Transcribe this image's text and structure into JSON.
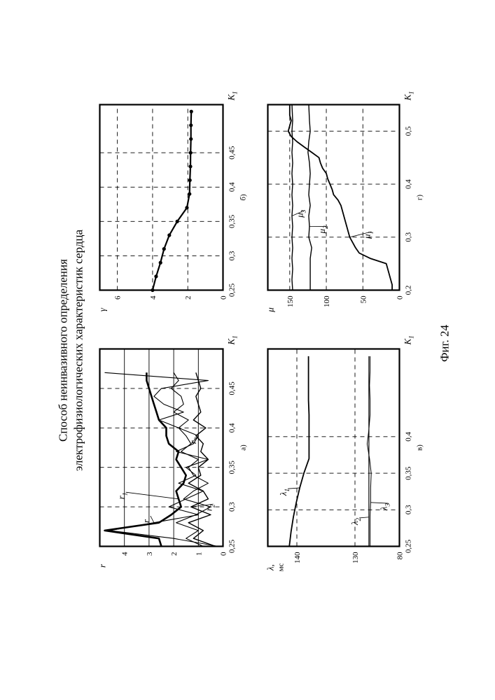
{
  "document": {
    "title_line1": "Способ неинвазивного определения",
    "title_line2": "электрофизиологических характеристик сердца",
    "figure_caption": "Фиг. 24"
  },
  "chart_data": [
    {
      "id": "a",
      "type": "line",
      "caption": "а)",
      "xlabel": "K1",
      "ylabel": "r",
      "xlim": [
        0.25,
        0.5
      ],
      "ylim": [
        0,
        5
      ],
      "xticks": [
        "0,25",
        "0,3",
        "0,35",
        "0,4",
        "0,45"
      ],
      "yticks": [
        "0",
        "1",
        "2",
        "3",
        "4"
      ],
      "grid": true,
      "series": [
        {
          "name": "r1",
          "label_text": "r",
          "label_sub": "1",
          "stroke": 2.6,
          "x": [
            0.25,
            0.26,
            0.27,
            0.28,
            0.29,
            0.3,
            0.31,
            0.32,
            0.33,
            0.34,
            0.35,
            0.36,
            0.37,
            0.38,
            0.39,
            0.4,
            0.41,
            0.42,
            0.43,
            0.44,
            0.45,
            0.46,
            0.47
          ],
          "y": [
            2.5,
            2.6,
            4.8,
            2.6,
            2.1,
            1.7,
            1.8,
            1.9,
            1.6,
            1.5,
            1.7,
            1.9,
            1.8,
            2.2,
            2.3,
            2.3,
            2.6,
            2.7,
            2.8,
            2.9,
            3.0,
            3.1,
            3.1
          ]
        },
        {
          "name": "r2",
          "label_text": "r",
          "label_sub": "2",
          "stroke": 1.4,
          "x": [
            0.25,
            0.26,
            0.27,
            0.28,
            0.29,
            0.3,
            0.31,
            0.32,
            0.33,
            0.34,
            0.35,
            0.36,
            0.37,
            0.38,
            0.39,
            0.4,
            0.41,
            0.42,
            0.43,
            0.44,
            0.45,
            0.46,
            0.47
          ],
          "y": [
            0.3,
            1.2,
            0.8,
            1.4,
            0.5,
            1.3,
            0.6,
            0.8,
            1.4,
            0.9,
            1.0,
            0.6,
            0.9,
            0.8,
            1.1,
            0.7,
            1.2,
            0.9,
            1.0,
            1.1,
            0.9,
            1.0,
            1.1
          ]
        },
        {
          "name": "r3",
          "label_text": "r",
          "label_sub": "3",
          "stroke": 1.1,
          "x": [
            0.25,
            0.26,
            0.27,
            0.28,
            0.29,
            0.3,
            0.31,
            0.32,
            0.33,
            0.34,
            0.35,
            0.36,
            0.37,
            0.38,
            0.39,
            0.4,
            0.41,
            0.42,
            0.43,
            0.44,
            0.45,
            0.46,
            0.47
          ],
          "y": [
            0.8,
            1.5,
            1.0,
            1.9,
            1.1,
            0.5,
            1.6,
            1.2,
            0.6,
            1.2,
            1.4,
            1.0,
            1.7,
            1.3,
            1.5,
            1.8,
            1.4,
            2.0,
            1.6,
            1.7,
            2.1,
            1.8,
            2.0
          ]
        },
        {
          "name": "r",
          "label_text": "r",
          "label_sub": "",
          "stroke": 1.1,
          "x": [
            0.25,
            0.26,
            0.27,
            0.28,
            0.29,
            0.3,
            0.31,
            0.32,
            0.33,
            0.34,
            0.35,
            0.36,
            0.37,
            0.38,
            0.39,
            0.4,
            0.41,
            0.42,
            0.43,
            0.44,
            0.45,
            0.46,
            0.47
          ],
          "y": [
            0.2,
            2.0,
            4.6,
            2.8,
            1.0,
            2.2,
            1.5,
            0.8,
            1.8,
            1.1,
            1.5,
            0.6,
            1.9,
            1.2,
            1.0,
            1.8,
            2.6,
            1.6,
            2.4,
            2.8,
            2.5,
            0.6,
            4.8
          ]
        }
      ]
    },
    {
      "id": "b",
      "type": "line",
      "caption": "б)",
      "xlabel": "K1",
      "ylabel": "γ",
      "xlim": [
        0.25,
        0.52
      ],
      "ylim": [
        0,
        7
      ],
      "xticks": [
        "0,25",
        "0,3",
        "0,35",
        "0,4",
        "0,45"
      ],
      "yticks": [
        "0",
        "2",
        "4",
        "6"
      ],
      "grid": true,
      "series": [
        {
          "name": "γ",
          "stroke": 2.2,
          "markers": true,
          "x": [
            0.25,
            0.27,
            0.29,
            0.31,
            0.33,
            0.35,
            0.37,
            0.39,
            0.41,
            0.43,
            0.45,
            0.47,
            0.49,
            0.51
          ],
          "y": [
            4.0,
            3.8,
            3.55,
            3.35,
            3.05,
            2.6,
            2.05,
            1.9,
            1.88,
            1.85,
            1.84,
            1.82,
            1.82,
            1.8
          ]
        }
      ]
    },
    {
      "id": "v",
      "type": "line",
      "caption": "в)",
      "xlabel": "K1",
      "ylabel": "λ, мс",
      "ylabel_line1": "λ,",
      "ylabel_line2": "мс",
      "xlim": [
        0.25,
        0.52
      ],
      "ylim": [
        80,
        145
      ],
      "xticks": [
        "0,25",
        "0,3",
        "0,35",
        "0,4"
      ],
      "yticks": [
        "80",
        "130",
        "140"
      ],
      "y_axis_break": true,
      "grid": true,
      "series": [
        {
          "name": "λ1",
          "label_text": "λ",
          "label_sub": "1",
          "stroke": 1.8,
          "x": [
            0.25,
            0.27,
            0.29,
            0.31,
            0.33,
            0.35,
            0.37,
            0.39,
            0.41,
            0.43,
            0.45,
            0.47,
            0.49,
            0.51
          ],
          "y": [
            141.3,
            141.0,
            140.6,
            140.1,
            139.5,
            138.8,
            137.9,
            137.9,
            137.9,
            137.9,
            138.0,
            138.0,
            138.0,
            138.0
          ]
        },
        {
          "name": "λ2",
          "label_text": "λ",
          "label_sub": "2",
          "stroke": 1.2,
          "x": [
            0.25,
            0.27,
            0.29,
            0.31,
            0.33,
            0.35,
            0.37,
            0.39,
            0.41,
            0.43,
            0.45,
            0.47,
            0.49,
            0.51
          ],
          "y": [
            127.6,
            127.6,
            127.6,
            127.6,
            127.6,
            127.6,
            127.6,
            127.6,
            127.6,
            127.6,
            127.6,
            127.6,
            127.6,
            127.6
          ]
        },
        {
          "name": "λ3",
          "label_text": "λ",
          "label_sub": "3",
          "stroke": 1.0,
          "x": [
            0.25,
            0.27,
            0.29,
            0.31,
            0.33,
            0.35,
            0.37,
            0.39,
            0.41,
            0.43,
            0.45,
            0.47,
            0.49,
            0.51
          ],
          "y": [
            127.4,
            127.4,
            127.4,
            127.3,
            127.3,
            127.2,
            127.5,
            127.9,
            127.6,
            127.4,
            127.4,
            127.5,
            127.4,
            127.4
          ]
        }
      ]
    },
    {
      "id": "g",
      "type": "line",
      "caption": "г)",
      "xlabel": "K1",
      "ylabel": "μ",
      "xlim": [
        0.2,
        0.55
      ],
      "ylim": [
        0,
        180
      ],
      "xticks": [
        "0,2",
        "0,3",
        "0,4",
        "0,5"
      ],
      "yticks": [
        "0",
        "50",
        "100",
        "150"
      ],
      "grid": true,
      "series": [
        {
          "name": "μ1",
          "label_text": "μ",
          "label_sub": "1",
          "stroke": 1.8,
          "x": [
            0.2,
            0.21,
            0.22,
            0.23,
            0.24,
            0.25,
            0.26,
            0.27,
            0.28,
            0.29,
            0.3,
            0.31,
            0.32,
            0.33,
            0.34,
            0.35,
            0.36,
            0.37,
            0.38,
            0.39,
            0.4,
            0.41,
            0.42,
            0.43,
            0.44,
            0.45,
            0.46,
            0.47,
            0.48,
            0.49,
            0.5,
            0.51,
            0.52,
            0.53,
            0.54,
            0.55
          ],
          "y": [
            10,
            10,
            12,
            14,
            16,
            18,
            40,
            55,
            60,
            64,
            68,
            70,
            72,
            74,
            76,
            78,
            80,
            84,
            90,
            92,
            95,
            98,
            100,
            105,
            108,
            110,
            120,
            130,
            140,
            148,
            152,
            150,
            148,
            150,
            150,
            150
          ]
        },
        {
          "name": "μ2",
          "label_text": "μ",
          "label_sub": "2",
          "stroke": 1.4,
          "x": [
            0.2,
            0.22,
            0.24,
            0.26,
            0.28,
            0.3,
            0.32,
            0.34,
            0.36,
            0.38,
            0.4,
            0.42,
            0.44,
            0.46,
            0.48,
            0.5,
            0.52,
            0.55
          ],
          "y": [
            122,
            122,
            122,
            122,
            120,
            124,
            123,
            124,
            122,
            124,
            123,
            122,
            123,
            125,
            124,
            122,
            123,
            124
          ]
        },
        {
          "name": "μ3",
          "label_text": "μ",
          "label_sub": "3",
          "stroke": 1.4,
          "x": [
            0.2,
            0.22,
            0.24,
            0.26,
            0.28,
            0.3,
            0.32,
            0.34,
            0.36,
            0.38,
            0.4,
            0.42,
            0.44,
            0.46,
            0.48,
            0.5,
            0.52,
            0.55
          ],
          "y": [
            146,
            147,
            146,
            147,
            146,
            147,
            146,
            147,
            146,
            147,
            146,
            147,
            146,
            147,
            146,
            147,
            146,
            147
          ]
        }
      ]
    }
  ]
}
